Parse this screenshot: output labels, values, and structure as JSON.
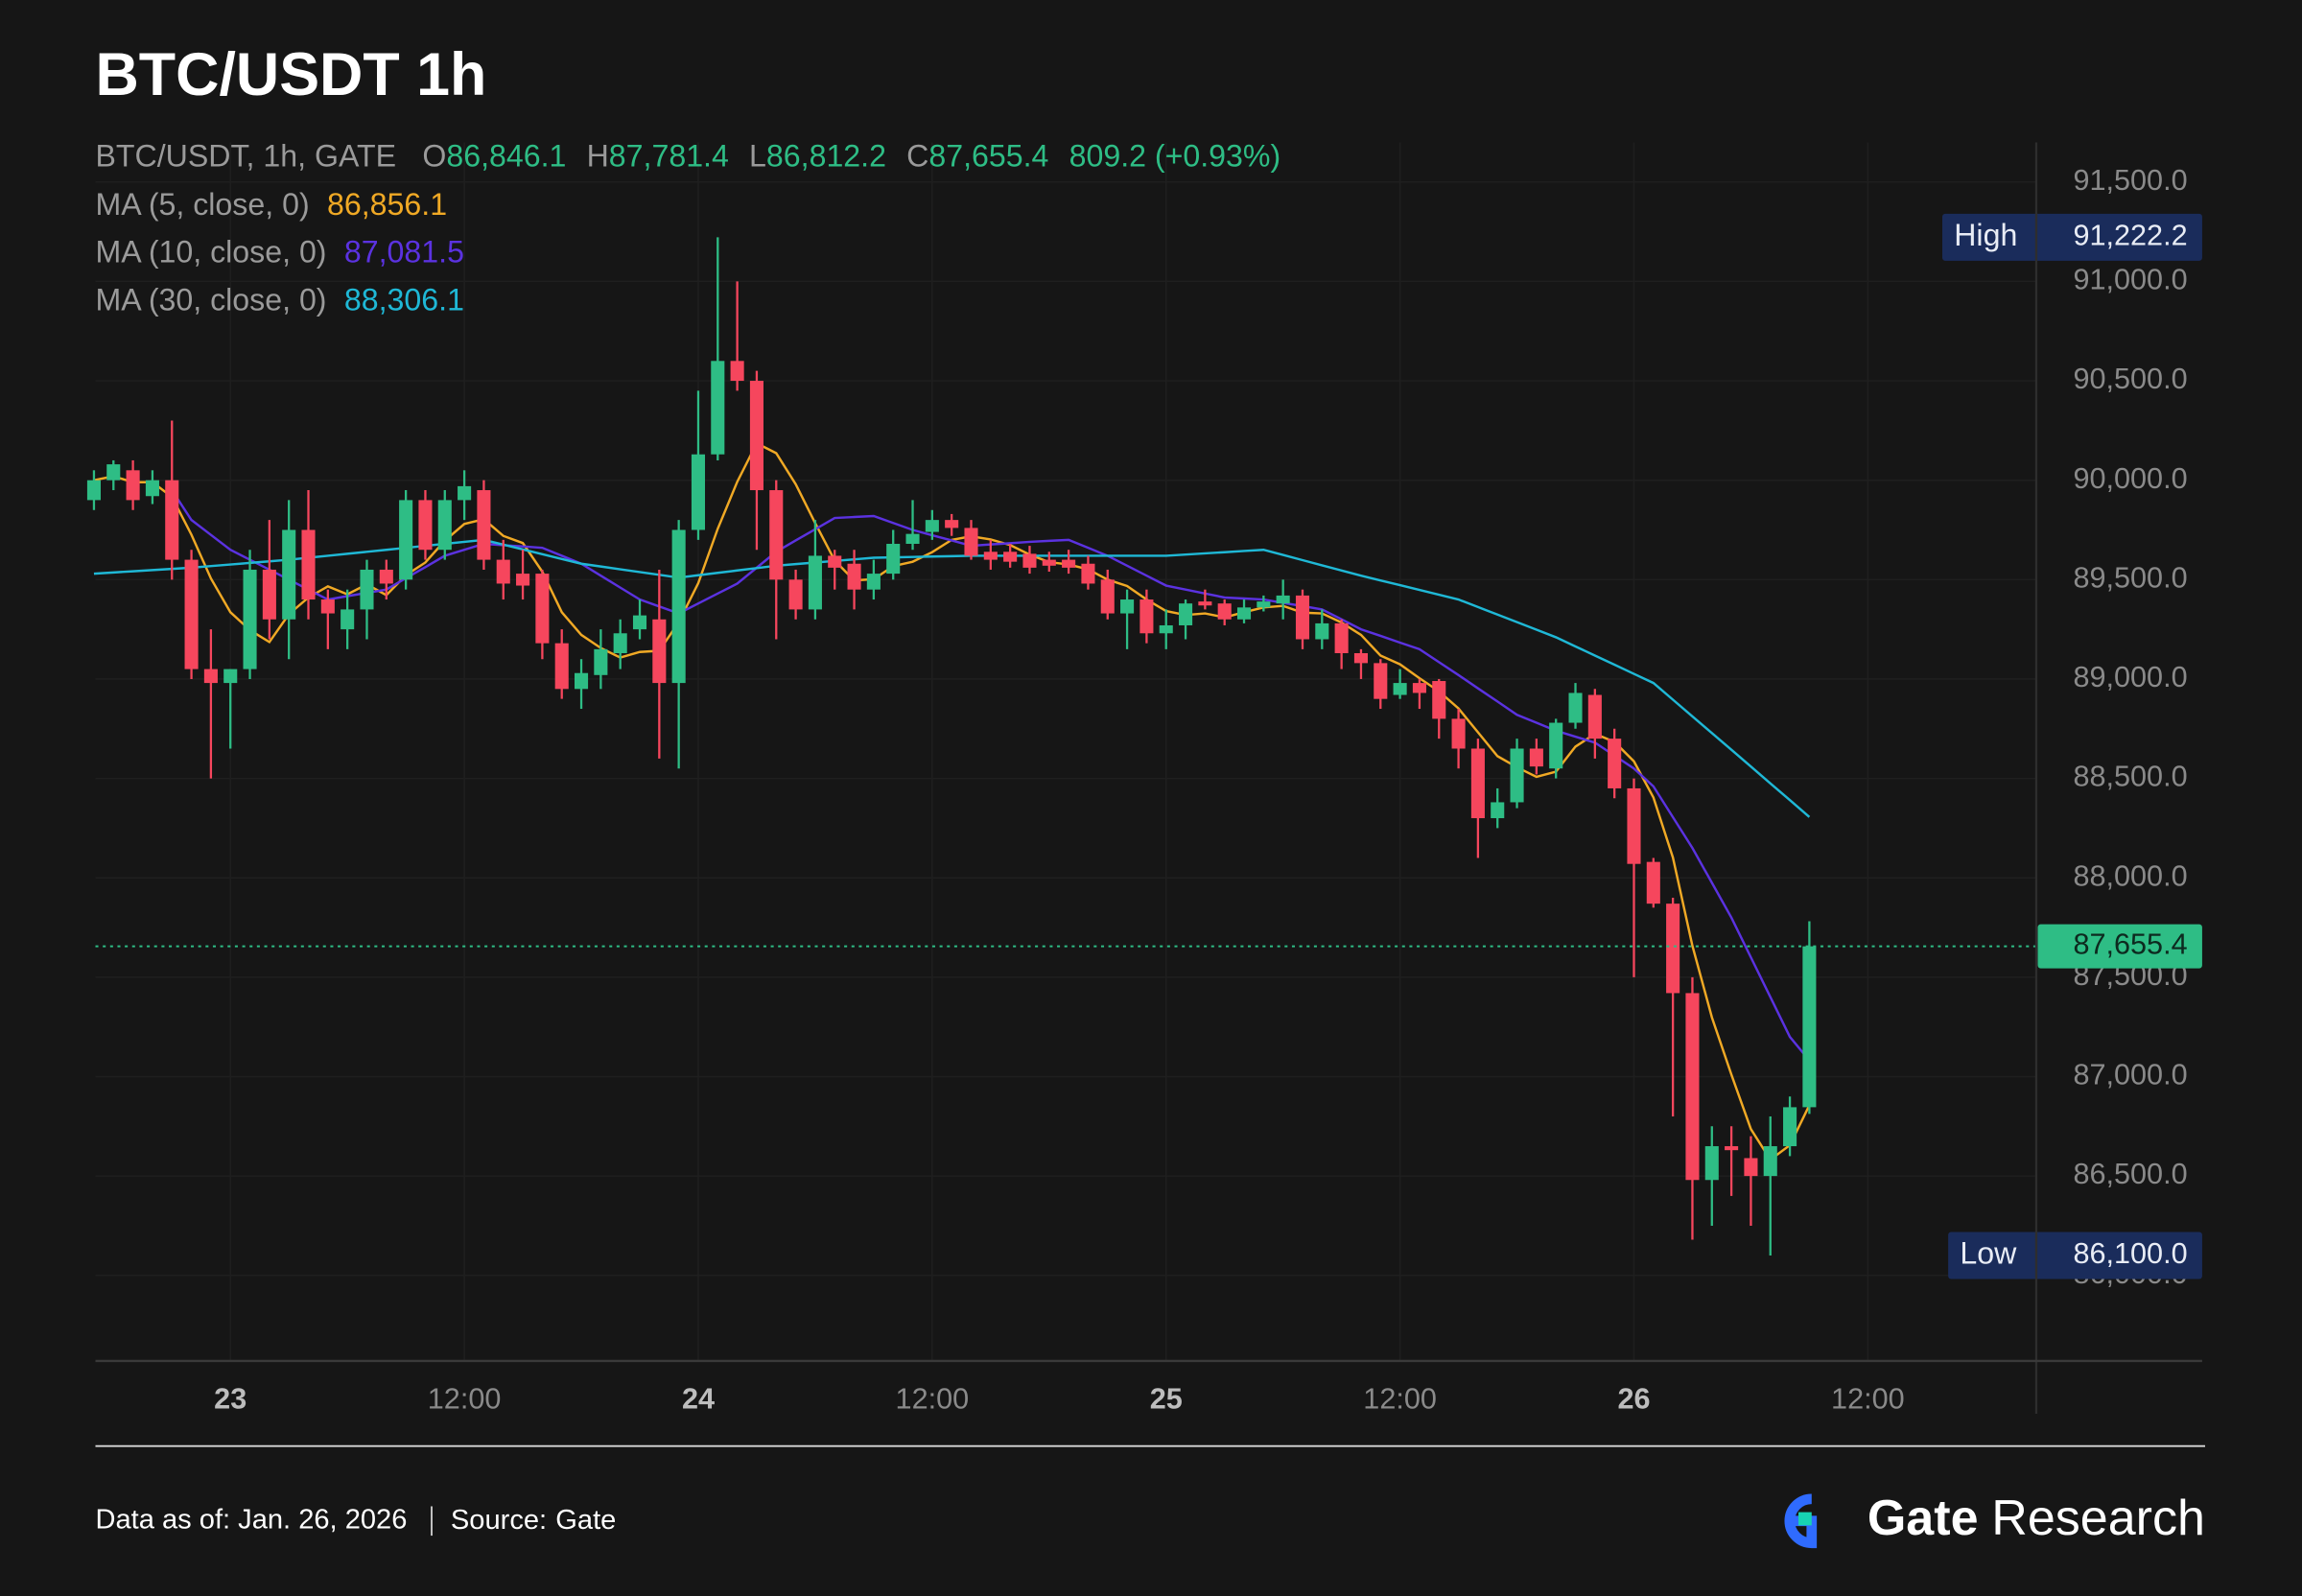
{
  "chart_data": {
    "type": "candlestick",
    "title": "BTC/USDT 1h",
    "symbol_line": "BTC/USDT, 1h, GATE",
    "ohlc": [
      {
        "key": "O",
        "label": "86,846.1"
      },
      {
        "key": "H",
        "label": "87,781.4"
      },
      {
        "key": "L",
        "label": "86,812.2"
      },
      {
        "key": "C",
        "label": "87,655.4"
      }
    ],
    "change": "809.2 (+0.93%)",
    "up_color": "#2ebd85",
    "down_color": "#f6465d",
    "grid": true,
    "candles": {
      "x": [
        "22 17:00",
        "22 18:00",
        "22 19:00",
        "22 20:00",
        "22 21:00",
        "22 22:00",
        "22 23:00",
        "23 00:00",
        "23 01:00",
        "23 02:00",
        "23 03:00",
        "23 04:00",
        "23 05:00",
        "23 06:00",
        "23 07:00",
        "23 08:00",
        "23 09:00",
        "23 10:00",
        "23 11:00",
        "23 12:00",
        "23 13:00",
        "23 14:00",
        "23 15:00",
        "23 16:00",
        "23 17:00",
        "23 18:00",
        "23 19:00",
        "23 20:00",
        "23 21:00",
        "23 22:00",
        "23 23:00",
        "24 00:00",
        "24 01:00",
        "24 02:00",
        "24 03:00",
        "24 04:00",
        "24 05:00",
        "24 06:00",
        "24 07:00",
        "24 08:00",
        "24 09:00",
        "24 10:00",
        "24 11:00",
        "24 12:00",
        "24 13:00",
        "24 14:00",
        "24 15:00",
        "24 16:00",
        "24 17:00",
        "24 18:00",
        "24 19:00",
        "24 20:00",
        "24 21:00",
        "24 22:00",
        "24 23:00",
        "25 00:00",
        "25 01:00",
        "25 02:00",
        "25 03:00",
        "25 04:00",
        "25 05:00",
        "25 06:00",
        "25 07:00",
        "25 08:00",
        "25 09:00",
        "25 10:00",
        "25 11:00",
        "25 12:00",
        "25 13:00",
        "25 14:00",
        "25 15:00",
        "25 16:00",
        "25 17:00",
        "25 18:00",
        "25 19:00",
        "25 20:00",
        "25 21:00",
        "25 22:00",
        "25 23:00",
        "26 00:00",
        "26 01:00",
        "26 02:00",
        "26 03:00",
        "26 04:00",
        "26 05:00",
        "26 06:00",
        "26 07:00",
        "26 08:00",
        "26 09:00"
      ],
      "open": [
        89900,
        90000,
        90050,
        89920,
        90000,
        89600,
        89050,
        88980,
        89050,
        89550,
        89300,
        89750,
        89400,
        89250,
        89350,
        89550,
        89500,
        89900,
        89650,
        89900,
        89950,
        89600,
        89530,
        89530,
        89180,
        88950,
        89020,
        89130,
        89250,
        89300,
        88980,
        89750,
        90130,
        90600,
        90500,
        89950,
        89500,
        89350,
        89620,
        89580,
        89450,
        89530,
        89680,
        89740,
        89800,
        89760,
        89640,
        89640,
        89630,
        89600,
        89600,
        89580,
        89500,
        89330,
        89400,
        89230,
        89270,
        89390,
        89380,
        89300,
        89360,
        89380,
        89420,
        89200,
        89280,
        89130,
        89080,
        88920,
        88980,
        88990,
        88800,
        88650,
        88300,
        88380,
        88650,
        88550,
        88780,
        88920,
        88700,
        88450,
        88080,
        87870,
        87420,
        86480,
        86650,
        86590,
        86500,
        86650,
        86846.1
      ],
      "high": [
        90050,
        90100,
        90100,
        90050,
        90300,
        89650,
        89250,
        89050,
        89650,
        89800,
        89900,
        89950,
        89450,
        89450,
        89600,
        89600,
        89950,
        89950,
        89950,
        90050,
        90000,
        89700,
        89650,
        89550,
        89250,
        89100,
        89250,
        89300,
        89400,
        89550,
        89800,
        90450,
        91222.2,
        91000,
        90550,
        90000,
        89550,
        89800,
        89650,
        89650,
        89600,
        89750,
        89900,
        89850,
        89830,
        89800,
        89700,
        89680,
        89670,
        89640,
        89650,
        89620,
        89550,
        89450,
        89450,
        89350,
        89400,
        89450,
        89400,
        89400,
        89420,
        89500,
        89450,
        89350,
        89300,
        89150,
        89100,
        89050,
        89000,
        89000,
        88850,
        88700,
        88450,
        88700,
        88700,
        88800,
        88980,
        88950,
        88750,
        88500,
        88100,
        87900,
        87500,
        86750,
        86750,
        86700,
        86800,
        86900,
        87781.4
      ],
      "low": [
        89850,
        89950,
        89850,
        89880,
        89500,
        89000,
        88500,
        88650,
        89000,
        89200,
        89100,
        89300,
        89150,
        89150,
        89200,
        89400,
        89450,
        89600,
        89600,
        89800,
        89550,
        89400,
        89400,
        89100,
        88900,
        88850,
        88950,
        89050,
        89200,
        88600,
        88550,
        89700,
        90100,
        90450,
        89650,
        89200,
        89300,
        89300,
        89450,
        89350,
        89400,
        89500,
        89650,
        89700,
        89720,
        89600,
        89550,
        89560,
        89530,
        89540,
        89530,
        89450,
        89300,
        89150,
        89180,
        89150,
        89200,
        89350,
        89270,
        89280,
        89340,
        89300,
        89150,
        89150,
        89050,
        89000,
        88850,
        88900,
        88850,
        88700,
        88550,
        88100,
        88250,
        88350,
        88520,
        88500,
        88750,
        88600,
        88400,
        87500,
        87850,
        86800,
        86180,
        86250,
        86400,
        86250,
        86100.0,
        86600,
        86812.2
      ],
      "close": [
        90000,
        90080,
        89900,
        90000,
        89600,
        89050,
        88980,
        89050,
        89550,
        89300,
        89750,
        89400,
        89330,
        89350,
        89550,
        89480,
        89900,
        89650,
        89900,
        89970,
        89600,
        89480,
        89470,
        89180,
        88950,
        89030,
        89150,
        89230,
        89320,
        88980,
        89750,
        90130,
        90600,
        90500,
        89950,
        89500,
        89350,
        89620,
        89560,
        89450,
        89530,
        89680,
        89730,
        89800,
        89760,
        89620,
        89600,
        89590,
        89560,
        89570,
        89560,
        89480,
        89330,
        89400,
        89230,
        89270,
        89380,
        89370,
        89300,
        89360,
        89390,
        89420,
        89200,
        89280,
        89130,
        89080,
        88900,
        88980,
        88930,
        88800,
        88650,
        88300,
        88380,
        88650,
        88560,
        88780,
        88930,
        88700,
        88450,
        88070,
        87870,
        87420,
        86480,
        86650,
        86630,
        86500,
        86650,
        86846.1,
        87655.4
      ]
    },
    "series": [
      {
        "name": "MA (5, close, 0)",
        "color": "#f0a925",
        "current_label": "86,856.1",
        "values": [
          90000,
          90020,
          89990,
          89990,
          89916,
          89726,
          89506,
          89336,
          89246,
          89186,
          89326,
          89410,
          89466,
          89426,
          89476,
          89422,
          89522,
          89586,
          89696,
          89780,
          89804,
          89720,
          89684,
          89540,
          89336,
          89222,
          89156,
          89108,
          89136,
          89142,
          89286,
          89482,
          89756,
          89992,
          90186,
          90136,
          89980,
          89784,
          89596,
          89496,
          89502,
          89568,
          89590,
          89638,
          89700,
          89718,
          89702,
          89674,
          89626,
          89588,
          89576,
          89552,
          89500,
          89468,
          89400,
          89342,
          89322,
          89330,
          89310,
          89336,
          89360,
          89368,
          89334,
          89330,
          89284,
          89222,
          89118,
          89074,
          89004,
          88938,
          88852,
          88732,
          88612,
          88556,
          88508,
          88534,
          88660,
          88724,
          88684,
          88586,
          88404,
          88102,
          87658,
          87298,
          87010,
          86736,
          86582,
          86655,
          86856.1
        ]
      },
      {
        "name": "MA (10, close, 0)",
        "color": "#5b32e0",
        "current_label": "87,081.5",
        "values": [
          null,
          null,
          null,
          null,
          89950,
          89800,
          89725,
          89650,
          89600,
          89550,
          89500,
          89450,
          89400,
          89417,
          89433,
          89450,
          89507,
          89563,
          89620,
          89650,
          89680,
          89673,
          89667,
          89660,
          89620,
          89580,
          89520,
          89460,
          89400,
          89365,
          89330,
          89380,
          89430,
          89480,
          89560,
          89640,
          89697,
          89753,
          89810,
          89815,
          89820,
          89785,
          89750,
          89723,
          89697,
          89670,
          89677,
          89683,
          89690,
          89695,
          89700,
          89660,
          89620,
          89570,
          89520,
          89470,
          89450,
          89430,
          89410,
          89405,
          89400,
          89383,
          89367,
          89350,
          89300,
          89250,
          89217,
          89183,
          89150,
          89085,
          89020,
          88953,
          88887,
          88820,
          88780,
          88740,
          88710,
          88680,
          88615,
          88550,
          88460,
          88305,
          88150,
          87975,
          87800,
          87600,
          87400,
          87200,
          87081.5
        ]
      },
      {
        "name": "MA (30, close, 0)",
        "color": "#1fb8d6",
        "current_label": "88,306.1",
        "values": [
          89530,
          89536,
          89542,
          89548,
          89554,
          89560,
          89568,
          89576,
          89584,
          89592,
          89600,
          89610,
          89620,
          89630,
          89640,
          89650,
          89660,
          89670,
          89680,
          89690,
          89700,
          89676,
          89652,
          89628,
          89604,
          89580,
          89566,
          89552,
          89538,
          89524,
          89510,
          89522,
          89534,
          89546,
          89558,
          89570,
          89578,
          89586,
          89594,
          89602,
          89610,
          89612,
          89614,
          89616,
          89618,
          89620,
          89620,
          89620,
          89620,
          89620,
          89620,
          89620,
          89620,
          89620,
          89620,
          89620,
          89626,
          89632,
          89638,
          89644,
          89650,
          89624,
          89598,
          89572,
          89546,
          89520,
          89496,
          89472,
          89448,
          89424,
          89400,
          89362,
          89324,
          89286,
          89248,
          89210,
          89164,
          89118,
          89072,
          89026,
          88980,
          88896,
          88812,
          88728,
          88644,
          88560,
          88475,
          88391,
          88306.1
        ]
      }
    ],
    "xlim": [
      "22 17:00",
      "27 05:00"
    ],
    "xticks": [
      {
        "value": "23 00:00",
        "label": "23"
      },
      {
        "value": "23 12:00",
        "label": "12:00"
      },
      {
        "value": "24 00:00",
        "label": "24"
      },
      {
        "value": "24 12:00",
        "label": "12:00"
      },
      {
        "value": "25 00:00",
        "label": "25"
      },
      {
        "value": "25 12:00",
        "label": "12:00"
      },
      {
        "value": "26 00:00",
        "label": "26"
      },
      {
        "value": "26 12:00",
        "label": "12:00"
      }
    ],
    "ylim": [
      85600,
      91700
    ],
    "yticks": [
      {
        "value": 86000,
        "label": "86,000.0"
      },
      {
        "value": 86500,
        "label": "86,500.0"
      },
      {
        "value": 87000,
        "label": "87,000.0"
      },
      {
        "value": 87500,
        "label": "87,500.0"
      },
      {
        "value": 88000,
        "label": "88,000.0"
      },
      {
        "value": 88500,
        "label": "88,500.0"
      },
      {
        "value": 89000,
        "label": "89,000.0"
      },
      {
        "value": 89500,
        "label": "89,500.0"
      },
      {
        "value": 90000,
        "label": "90,000.0"
      },
      {
        "value": 90500,
        "label": "90,500.0"
      },
      {
        "value": 91000,
        "label": "91,000.0"
      },
      {
        "value": 91500,
        "label": "91,500.0"
      }
    ],
    "high_marker": {
      "title": "High",
      "value": 91222.2,
      "label": "91,222.2"
    },
    "low_marker": {
      "title": "Low",
      "value": 86100.0,
      "label": "86,100.0"
    },
    "last_price": {
      "value": 87655.4,
      "label": "87,655.4"
    }
  },
  "footer": {
    "date": "Data as of: Jan. 26, 2026",
    "source_label": "Source:",
    "source": "Gate",
    "brand": "Gate",
    "brand_suffix": "Research"
  }
}
